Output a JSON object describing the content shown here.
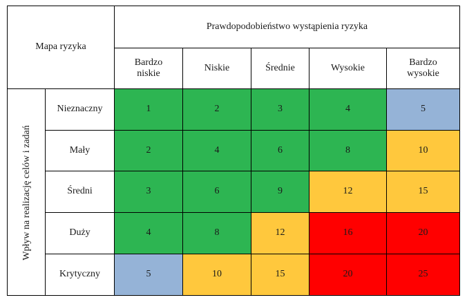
{
  "title": "Mapa ryzyka",
  "probability_header": "Prawdopodobieństwo wystąpienia ryzyka",
  "impact_header": "Wpływ na realizację celów i zadań",
  "probability_levels": [
    "Bardzo niskie",
    "Niskie",
    "Średnie",
    "Wysokie",
    "Bardzo wysokie"
  ],
  "impact_levels": [
    "Nieznaczny",
    "Mały",
    "Średni",
    "Duży",
    "Krytyczny"
  ],
  "matrix": [
    [
      "1",
      "2",
      "3",
      "4",
      "5"
    ],
    [
      "2",
      "4",
      "6",
      "8",
      "10"
    ],
    [
      "3",
      "6",
      "9",
      "12",
      "15"
    ],
    [
      "4",
      "8",
      "12",
      "16",
      "20"
    ],
    [
      "5",
      "10",
      "15",
      "20",
      "25"
    ]
  ],
  "colors_matrix": [
    [
      "green",
      "green",
      "green",
      "green",
      "blue"
    ],
    [
      "green",
      "green",
      "green",
      "green",
      "yellow"
    ],
    [
      "green",
      "green",
      "green",
      "yellow",
      "yellow"
    ],
    [
      "green",
      "green",
      "yellow",
      "red",
      "red"
    ],
    [
      "blue",
      "yellow",
      "yellow",
      "red",
      "red"
    ]
  ],
  "palette": {
    "green": "#2db552",
    "yellow": "#ffc83d",
    "red": "#ff0000",
    "blue": "#95b3d7"
  }
}
